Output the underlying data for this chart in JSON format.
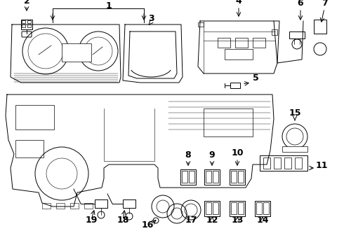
{
  "bg_color": "#ffffff",
  "lc": "#000000",
  "lw": 0.7,
  "figsize": [
    4.9,
    3.6
  ],
  "dpi": 100,
  "xlim": [
    0,
    490
  ],
  "ylim": [
    0,
    360
  ]
}
